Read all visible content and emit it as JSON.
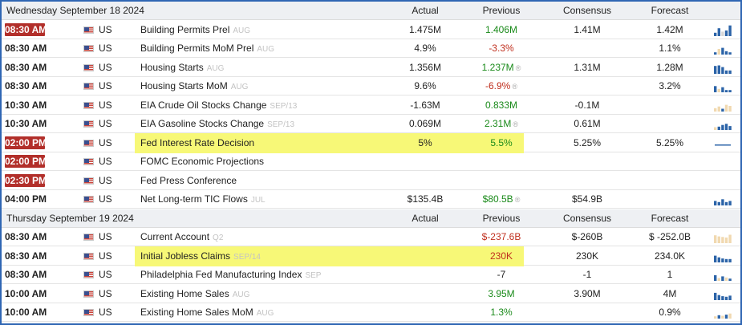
{
  "sections": [
    {
      "date": "Wednesday September 18 2024",
      "columns": {
        "actual": "Actual",
        "previous": "Previous",
        "consensus": "Consensus",
        "forecast": "Forecast"
      },
      "rows": [
        {
          "time": "08:30 AM",
          "badge": true,
          "country": "US",
          "event": "Building Permits Prel",
          "period": "AUG",
          "actual": "1.475M",
          "previous": "1.406M",
          "previous_dir": "up",
          "consensus": "1.41M",
          "forecast": "1.42M",
          "spark": [
            "#2c64a8",
            "#2c64a8",
            "#d7d7d7",
            "#2c64a8",
            "#2c64a8"
          ],
          "spark_levels": [
            0.3,
            0.7,
            0.4,
            0.5,
            0.95
          ]
        },
        {
          "time": "08:30 AM",
          "badge": false,
          "country": "US",
          "event": "Building Permits MoM Prel",
          "period": "AUG",
          "actual": "4.9%",
          "previous": "-3.3%",
          "previous_dir": "down",
          "consensus": "",
          "forecast": "1.1%",
          "spark": [
            "#2c64a8",
            "#f1d9b0",
            "#2c64a8",
            "#2c64a8",
            "#2c64a8"
          ],
          "spark_levels": [
            0.2,
            0.5,
            0.6,
            0.3,
            0.2
          ]
        },
        {
          "time": "08:30 AM",
          "badge": false,
          "country": "US",
          "event": "Housing Starts",
          "period": "AUG",
          "actual": "1.356M",
          "previous": "1.237M",
          "previous_dir": "up",
          "previous_revised": true,
          "consensus": "1.31M",
          "forecast": "1.28M",
          "spark": [
            "#2c64a8",
            "#2c64a8",
            "#2c64a8",
            "#2c64a8",
            "#2c64a8"
          ],
          "spark_levels": [
            0.7,
            0.75,
            0.6,
            0.3,
            0.3
          ]
        },
        {
          "time": "08:30 AM",
          "badge": false,
          "country": "US",
          "event": "Housing Starts MoM",
          "period": "AUG",
          "actual": "9.6%",
          "previous": "-6.9%",
          "previous_dir": "down",
          "previous_revised": true,
          "consensus": "",
          "forecast": "3.2%",
          "spark": [
            "#2c64a8",
            "#f1d9b0",
            "#2c64a8",
            "#2c64a8",
            "#2c64a8"
          ],
          "spark_levels": [
            0.55,
            0.3,
            0.45,
            0.2,
            0.2
          ]
        },
        {
          "time": "10:30 AM",
          "badge": false,
          "country": "US",
          "event": "EIA Crude Oil Stocks Change",
          "period": "SEP/13",
          "actual": "-1.63M",
          "previous": "0.833M",
          "previous_dir": "up",
          "consensus": "-0.1M",
          "forecast": "",
          "spark": [
            "#f1d9b0",
            "#f1d9b0",
            "#2c64a8",
            "#f1d9b0",
            "#f1d9b0"
          ],
          "spark_levels": [
            0.3,
            0.45,
            0.25,
            0.6,
            0.5
          ]
        },
        {
          "time": "10:30 AM",
          "badge": false,
          "country": "US",
          "event": "EIA Gasoline Stocks Change",
          "period": "SEP/13",
          "actual": "0.069M",
          "previous": "2.31M",
          "previous_dir": "up",
          "previous_revised": true,
          "consensus": "0.61M",
          "forecast": "",
          "spark": [
            "#f1d9b0",
            "#2c64a8",
            "#2c64a8",
            "#2c64a8",
            "#2c64a8"
          ],
          "spark_levels": [
            0.25,
            0.3,
            0.45,
            0.55,
            0.35
          ]
        },
        {
          "time": "02:00 PM",
          "badge": true,
          "country": "US",
          "event": "Fed Interest Rate Decision",
          "period": "",
          "actual": "5%",
          "previous": "5.5%",
          "previous_dir": "up",
          "consensus": "5.25%",
          "forecast": "5.25%",
          "highlight": true,
          "spark": [
            "#2c64a8",
            "#2c64a8",
            "#2c64a8",
            "#2c64a8",
            "#2c64a8"
          ],
          "spark_levels": [
            0.05,
            0.05,
            0.05,
            0.05,
            0.05
          ]
        },
        {
          "time": "02:00 PM",
          "badge": true,
          "country": "US",
          "event": "FOMC Economic Projections",
          "period": "",
          "actual": "",
          "previous": "",
          "consensus": "",
          "forecast": "",
          "spark": [],
          "spark_levels": []
        },
        {
          "time": "02:30 PM",
          "badge": true,
          "country": "US",
          "event": "Fed Press Conference",
          "period": "",
          "actual": "",
          "previous": "",
          "consensus": "",
          "forecast": "",
          "spark": [],
          "spark_levels": []
        },
        {
          "time": "04:00 PM",
          "badge": false,
          "country": "US",
          "event": "Net Long-term TIC Flows",
          "period": "JUL",
          "actual": "$135.4B",
          "previous": "$80.5B",
          "previous_dir": "up",
          "previous_revised": true,
          "consensus": "$54.9B",
          "forecast": "",
          "spark": [
            "#2c64a8",
            "#2c64a8",
            "#2c64a8",
            "#2c64a8",
            "#2c64a8"
          ],
          "spark_levels": [
            0.4,
            0.3,
            0.55,
            0.3,
            0.4
          ]
        }
      ]
    },
    {
      "date": "Thursday September 19 2024",
      "columns": {
        "actual": "Actual",
        "previous": "Previous",
        "consensus": "Consensus",
        "forecast": "Forecast"
      },
      "rows": [
        {
          "time": "08:30 AM",
          "badge": false,
          "country": "US",
          "event": "Current Account",
          "period": "Q2",
          "actual": "",
          "previous": "$-237.6B",
          "previous_dir": "down",
          "consensus": "$-260B",
          "forecast": "$ -252.0B",
          "spark": [
            "#f1d9b0",
            "#f1d9b0",
            "#f1d9b0",
            "#f1d9b0",
            "#f1d9b0"
          ],
          "spark_levels": [
            0.7,
            0.6,
            0.55,
            0.5,
            0.75
          ]
        },
        {
          "time": "08:30 AM",
          "badge": false,
          "country": "US",
          "event": "Initial Jobless Claims",
          "period": "SEP/14",
          "actual": "",
          "previous": "230K",
          "previous_dir": "down",
          "consensus": "230K",
          "forecast": "234.0K",
          "highlight": true,
          "spark": [
            "#2c64a8",
            "#2c64a8",
            "#2c64a8",
            "#2c64a8",
            "#2c64a8"
          ],
          "spark_levels": [
            0.6,
            0.45,
            0.35,
            0.3,
            0.3
          ]
        },
        {
          "time": "08:30 AM",
          "badge": false,
          "country": "US",
          "event": "Philadelphia Fed Manufacturing Index",
          "period": "SEP",
          "actual": "",
          "previous": "-7",
          "previous_dir": "none",
          "consensus": "-1",
          "forecast": "1",
          "spark": [
            "#2c64a8",
            "#f1d9b0",
            "#2c64a8",
            "#f1d9b0",
            "#2c64a8"
          ],
          "spark_levels": [
            0.5,
            0.25,
            0.4,
            0.3,
            0.2
          ]
        },
        {
          "time": "10:00 AM",
          "badge": false,
          "country": "US",
          "event": "Existing Home Sales",
          "period": "AUG",
          "actual": "",
          "previous": "3.95M",
          "previous_dir": "up",
          "consensus": "3.90M",
          "forecast": "4M",
          "spark": [
            "#2c64a8",
            "#2c64a8",
            "#2c64a8",
            "#2c64a8",
            "#2c64a8"
          ],
          "spark_levels": [
            0.65,
            0.45,
            0.35,
            0.3,
            0.4
          ]
        },
        {
          "time": "10:00 AM",
          "badge": false,
          "country": "US",
          "event": "Existing Home Sales MoM",
          "period": "AUG",
          "actual": "",
          "previous": "1.3%",
          "previous_dir": "up",
          "consensus": "",
          "forecast": "0.9%",
          "spark": [
            "#f1d9b0",
            "#2c64a8",
            "#f1d9b0",
            "#2c64a8",
            "#f1d9b0"
          ],
          "spark_levels": [
            0.2,
            0.3,
            0.25,
            0.35,
            0.45
          ]
        }
      ]
    }
  ]
}
